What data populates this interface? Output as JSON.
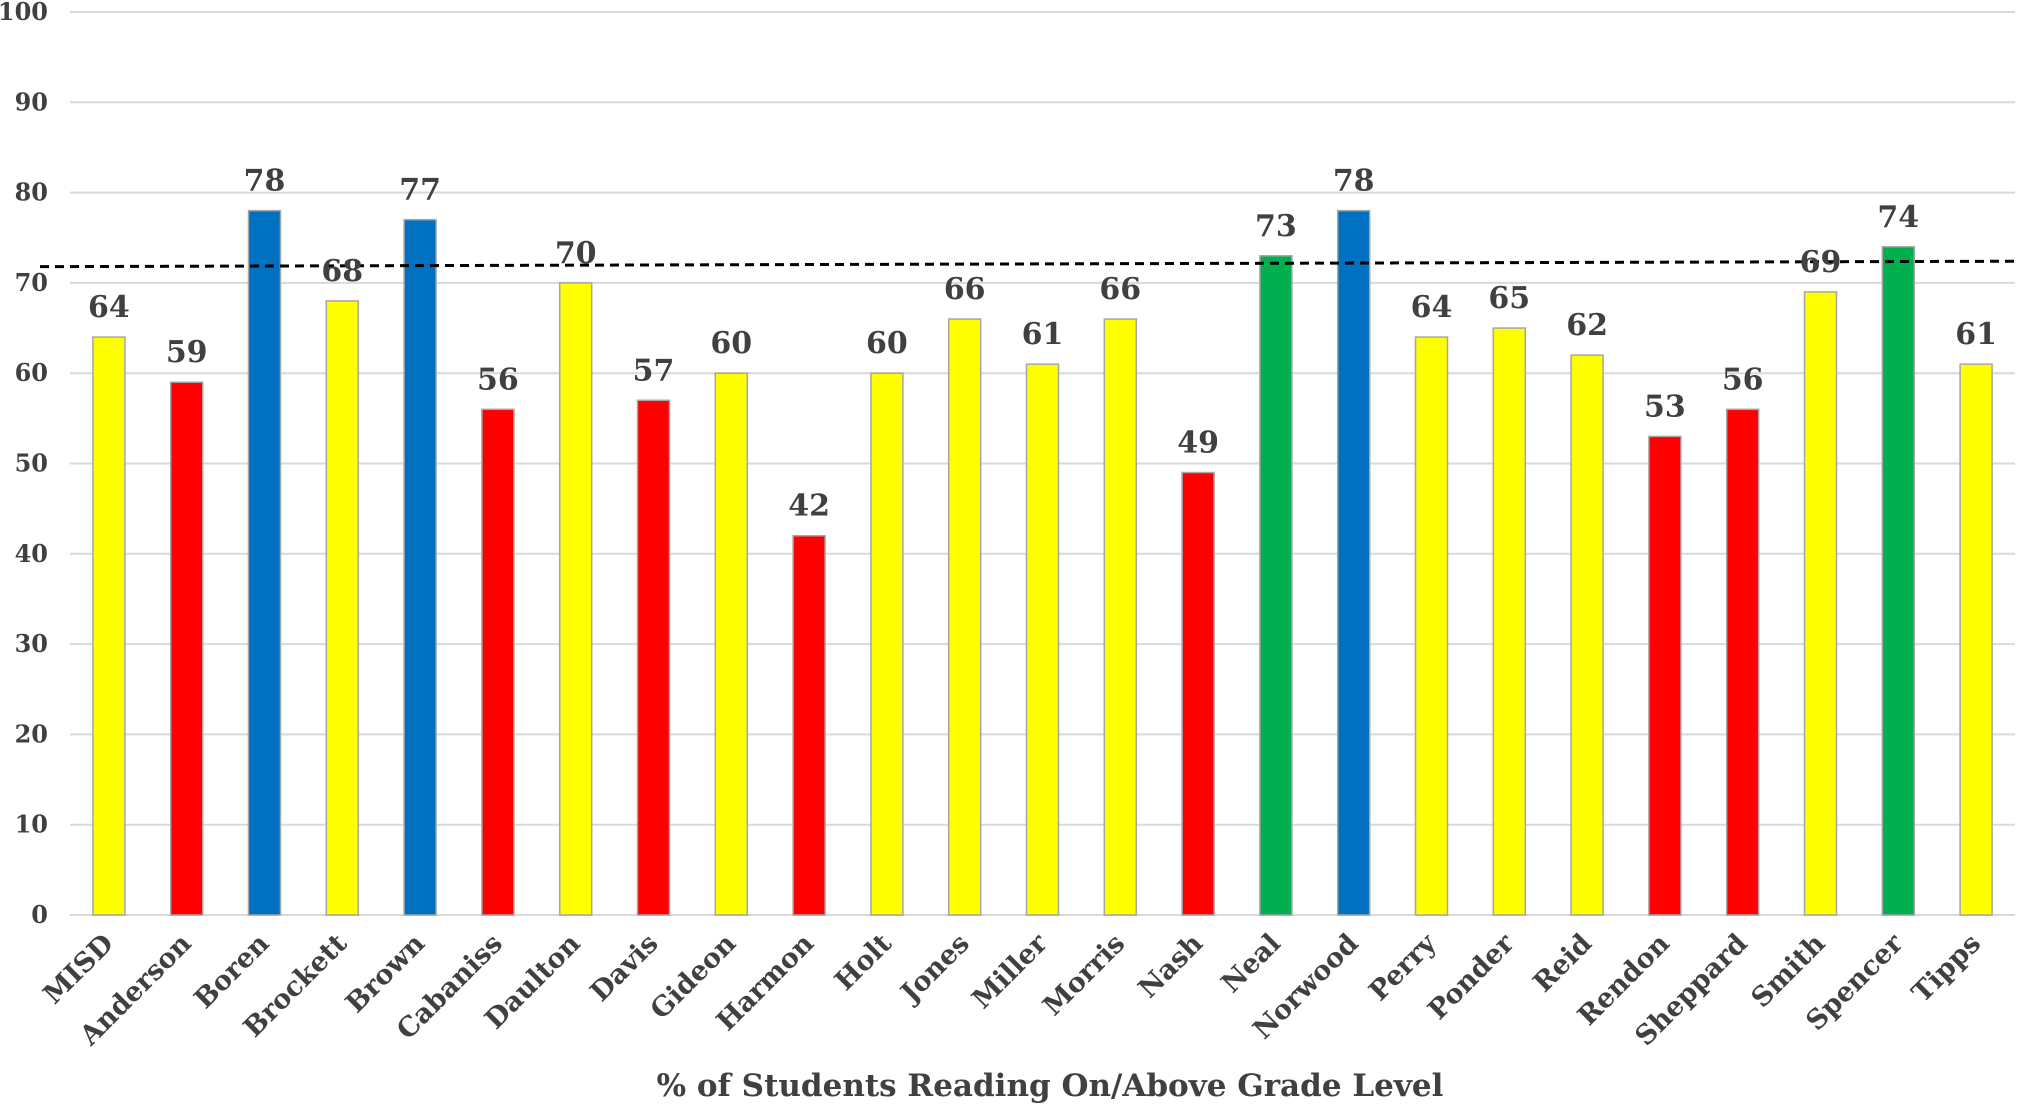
{
  "chart_data": {
    "type": "bar",
    "xlabel": "% of Students Reading On/Above Grade Level",
    "ylabel": "",
    "ylim": [
      0,
      100
    ],
    "yticks": [
      0,
      10,
      20,
      30,
      40,
      50,
      60,
      70,
      80,
      90,
      100
    ],
    "grid": true,
    "legend": "none",
    "reference_line": {
      "style": "dashed",
      "color": "#000000",
      "y_start": 71.8,
      "y_end": 72.4
    },
    "colors": {
      "yellow": "#FFFF00",
      "red": "#FF0000",
      "blue": "#0070C0",
      "green": "#00B050"
    },
    "categories": [
      "MISD",
      "Anderson",
      "Boren",
      "Brockett",
      "Brown",
      "Cabaniss",
      "Daulton",
      "Davis",
      "Gideon",
      "Harmon",
      "Holt",
      "Jones",
      "Miller",
      "Morris",
      "Nash",
      "Neal",
      "Norwood",
      "Perry",
      "Ponder",
      "Reid",
      "Rendon",
      "Sheppard",
      "Smith",
      "Spencer",
      "Tipps"
    ],
    "values": [
      64,
      59,
      78,
      68,
      77,
      56,
      70,
      57,
      60,
      42,
      60,
      66,
      61,
      66,
      49,
      73,
      78,
      64,
      65,
      62,
      53,
      56,
      69,
      74,
      61
    ],
    "bar_colors": [
      "#FFFF00",
      "#FF0000",
      "#0070C0",
      "#FFFF00",
      "#0070C0",
      "#FF0000",
      "#FFFF00",
      "#FF0000",
      "#FFFF00",
      "#FF0000",
      "#FFFF00",
      "#FFFF00",
      "#FFFF00",
      "#FFFF00",
      "#FF0000",
      "#00B050",
      "#0070C0",
      "#FFFF00",
      "#FFFF00",
      "#FFFF00",
      "#FF0000",
      "#FF0000",
      "#FFFF00",
      "#00B050",
      "#FFFF00"
    ]
  }
}
